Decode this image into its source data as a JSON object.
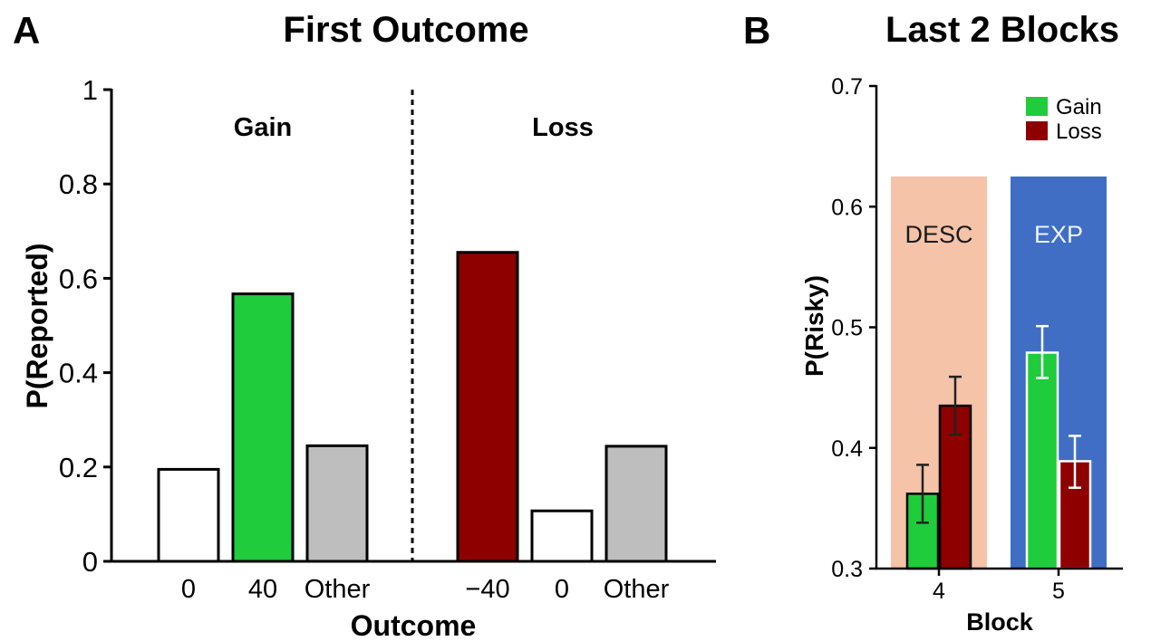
{
  "chart_data": [
    {
      "type": "bar",
      "panel_label": "A",
      "title": "First Outcome",
      "xlabel": "Outcome",
      "ylabel": "P(Reported)",
      "ylim": [
        0,
        1
      ],
      "yticks": [
        {
          "value": 0,
          "label": "0"
        },
        {
          "value": 0.2,
          "label": "0.2"
        },
        {
          "value": 0.4,
          "label": "0.4"
        },
        {
          "value": 0.6,
          "label": "0.6"
        },
        {
          "value": 0.8,
          "label": "0.8"
        },
        {
          "value": 1,
          "label": "1"
        }
      ],
      "grid": false,
      "groups": [
        {
          "name": "Gain",
          "bars": [
            {
              "category": "0",
              "value": 0.195,
              "color": "#ffffff"
            },
            {
              "category": "40",
              "value": 0.567,
              "color": "#1fcc3c"
            },
            {
              "category": "Other",
              "value": 0.245,
              "color": "#bebebe"
            }
          ]
        },
        {
          "name": "Loss",
          "bars": [
            {
              "category": "−40",
              "value": 0.655,
              "color": "#8e0000"
            },
            {
              "category": "0",
              "value": 0.107,
              "color": "#ffffff"
            },
            {
              "category": "Other",
              "value": 0.244,
              "color": "#bebebe"
            }
          ]
        }
      ]
    },
    {
      "type": "bar",
      "panel_label": "B",
      "title": "Last 2 Blocks",
      "xlabel": "Block",
      "ylabel": "P(Risky)",
      "ylim": [
        0.3,
        0.7
      ],
      "yticks": [
        {
          "value": 0.3,
          "label": "0.3"
        },
        {
          "value": 0.4,
          "label": "0.4"
        },
        {
          "value": 0.5,
          "label": "0.5"
        },
        {
          "value": 0.6,
          "label": "0.6"
        },
        {
          "value": 0.7,
          "label": "0.7"
        }
      ],
      "grid": false,
      "legend": {
        "position": "top-right",
        "entries": [
          {
            "name": "Gain",
            "color": "#1fcc3c"
          },
          {
            "name": "Loss",
            "color": "#8e0000"
          }
        ]
      },
      "backgrounds": [
        {
          "label": "DESC",
          "color": "#f4c3a8",
          "text_color": "#1a1a1a",
          "top_value": 0.625
        },
        {
          "label": "EXP",
          "color": "#3f6ec4",
          "text_color": "#eef3ff",
          "top_value": 0.625
        }
      ],
      "categories": [
        "4",
        "5"
      ],
      "series": [
        {
          "name": "Gain",
          "color": "#1fcc3c",
          "values": [
            0.362,
            0.479
          ],
          "err_low": [
            0.338,
            0.458
          ],
          "err_high": [
            0.386,
            0.501
          ]
        },
        {
          "name": "Loss",
          "color": "#8e0000",
          "values": [
            0.435,
            0.389
          ],
          "err_low": [
            0.411,
            0.367
          ],
          "err_high": [
            0.459,
            0.41
          ]
        }
      ]
    }
  ]
}
